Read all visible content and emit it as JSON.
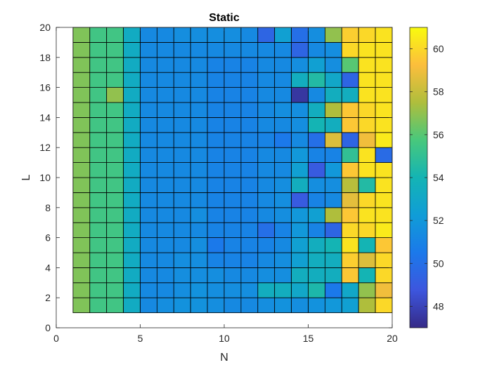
{
  "chart_data": {
    "type": "heatmap",
    "title": "Static",
    "xlabel": "N",
    "ylabel": "L",
    "xlim": [
      0,
      20
    ],
    "ylim": [
      0,
      20
    ],
    "x_ticks": [
      "0",
      "5",
      "10",
      "15",
      "20"
    ],
    "y_ticks": [
      "0",
      "2",
      "4",
      "6",
      "8",
      "10",
      "12",
      "14",
      "16",
      "18",
      "20"
    ],
    "colorbar": {
      "min": 47,
      "max": 61,
      "ticks": [
        "48",
        "50",
        "52",
        "54",
        "56",
        "58",
        "60"
      ],
      "colormap": "parula"
    },
    "x_edges": [
      1,
      20
    ],
    "y_edges": [
      1,
      20
    ],
    "grid_shape": [
      19,
      19
    ],
    "values": [
      [
        56.7,
        55.5,
        55.5,
        53.3,
        51.3,
        51.5,
        51.7,
        51.7,
        51.5,
        51.3,
        51.3,
        51.5,
        51.7,
        51.5,
        51.7,
        52.0,
        52.5,
        57.5,
        60.0
      ],
      [
        56.7,
        55.5,
        55.5,
        53.3,
        51.3,
        51.3,
        51.5,
        51.7,
        51.5,
        51.5,
        51.5,
        53.5,
        53.5,
        53.0,
        54.3,
        50.5,
        53.0,
        57.0,
        59.0
      ],
      [
        56.7,
        55.5,
        55.5,
        53.3,
        51.3,
        51.3,
        51.5,
        51.5,
        51.5,
        51.3,
        51.3,
        51.5,
        51.5,
        53.5,
        53.5,
        53.5,
        59.5,
        54.0,
        60.0
      ],
      [
        56.7,
        55.5,
        55.5,
        53.3,
        51.3,
        51.3,
        51.5,
        51.5,
        51.0,
        51.0,
        51.0,
        51.3,
        51.5,
        52.5,
        53.5,
        53.5,
        59.7,
        58.5,
        60.0
      ],
      [
        56.7,
        55.5,
        55.5,
        53.3,
        51.3,
        51.3,
        51.3,
        51.5,
        50.5,
        51.0,
        51.0,
        51.0,
        51.3,
        52.5,
        53.5,
        54.0,
        60.3,
        54.0,
        59.5
      ],
      [
        56.7,
        55.5,
        55.5,
        53.3,
        51.3,
        51.3,
        51.3,
        51.3,
        51.0,
        51.0,
        51.0,
        50.0,
        51.0,
        52.0,
        51.0,
        49.5,
        60.0,
        60.0,
        60.5
      ],
      [
        56.7,
        55.5,
        55.5,
        53.3,
        51.3,
        51.3,
        51.3,
        51.5,
        51.0,
        51.0,
        51.0,
        51.3,
        51.5,
        52.0,
        52.5,
        57.5,
        59.5,
        60.3,
        60.3
      ],
      [
        56.7,
        55.5,
        55.5,
        53.3,
        51.3,
        51.3,
        51.3,
        51.3,
        51.0,
        51.0,
        51.0,
        51.3,
        51.5,
        49.0,
        51.0,
        51.3,
        58.7,
        60.0,
        60.3
      ],
      [
        56.7,
        55.5,
        55.5,
        53.3,
        51.3,
        51.3,
        51.3,
        51.3,
        51.0,
        51.0,
        51.0,
        51.3,
        51.5,
        53.5,
        51.5,
        51.5,
        57.7,
        54.5,
        60.3
      ],
      [
        56.7,
        55.5,
        55.5,
        53.3,
        51.3,
        51.3,
        51.3,
        51.3,
        51.0,
        51.0,
        51.0,
        51.3,
        51.3,
        52.5,
        49.0,
        52.0,
        59.5,
        60.3,
        60.3
      ],
      [
        56.7,
        55.5,
        55.5,
        53.3,
        51.3,
        51.3,
        51.3,
        51.3,
        51.0,
        51.0,
        51.0,
        51.3,
        51.3,
        52.0,
        51.0,
        51.0,
        55.0,
        60.3,
        49.8
      ],
      [
        56.7,
        55.5,
        55.5,
        53.3,
        51.3,
        51.3,
        51.3,
        51.3,
        51.0,
        51.0,
        51.0,
        51.0,
        50.5,
        51.3,
        50.0,
        58.5,
        49.5,
        59.0,
        60.5
      ],
      [
        56.7,
        55.5,
        55.5,
        53.3,
        51.3,
        51.3,
        51.3,
        51.3,
        51.0,
        51.0,
        51.0,
        51.3,
        51.3,
        51.5,
        54.0,
        53.5,
        59.5,
        60.0,
        60.3
      ],
      [
        56.7,
        55.5,
        55.5,
        53.3,
        51.3,
        51.3,
        51.3,
        51.3,
        51.0,
        51.0,
        51.0,
        51.3,
        51.5,
        51.5,
        53.5,
        57.5,
        59.5,
        60.0,
        60.3
      ],
      [
        56.7,
        55.5,
        57.0,
        53.3,
        51.3,
        51.3,
        51.3,
        51.3,
        51.0,
        51.0,
        51.0,
        51.3,
        51.3,
        47.5,
        51.3,
        53.5,
        53.5,
        60.3,
        60.3
      ],
      [
        56.7,
        55.5,
        55.5,
        53.3,
        51.3,
        51.3,
        51.3,
        51.3,
        51.0,
        51.0,
        51.0,
        51.3,
        51.3,
        53.5,
        54.5,
        53.0,
        49.5,
        60.3,
        60.3
      ],
      [
        56.7,
        55.5,
        55.5,
        53.3,
        51.3,
        51.3,
        51.3,
        51.3,
        51.0,
        51.0,
        51.0,
        51.3,
        51.3,
        51.5,
        52.5,
        51.5,
        56.0,
        60.3,
        60.3
      ],
      [
        56.7,
        55.5,
        55.5,
        53.3,
        51.3,
        51.3,
        51.3,
        51.3,
        51.3,
        51.3,
        51.3,
        51.3,
        51.3,
        49.5,
        51.3,
        51.5,
        60.0,
        60.3,
        60.3
      ],
      [
        56.7,
        55.5,
        55.5,
        53.3,
        51.3,
        51.3,
        51.5,
        51.5,
        51.5,
        51.5,
        51.3,
        49.5,
        52.5,
        50.0,
        51.5,
        57.0,
        59.7,
        60.0,
        60.3
      ]
    ]
  }
}
